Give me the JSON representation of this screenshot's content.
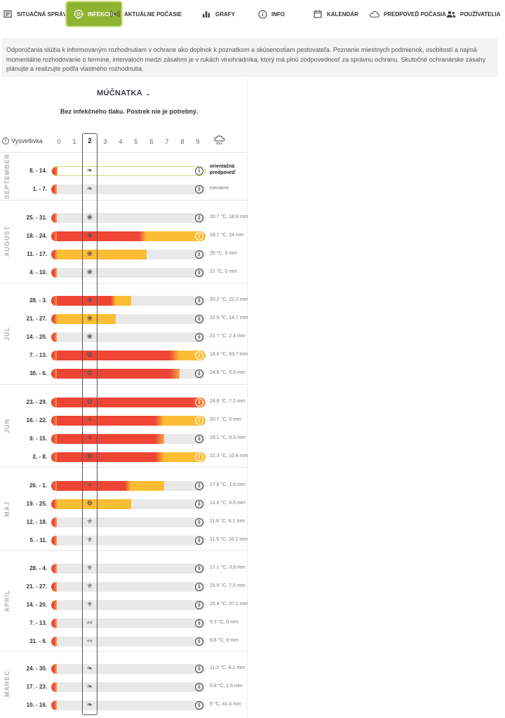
{
  "nav": [
    {
      "label": "SITUAČNÁ SPRÁVA",
      "icon": "newspaper-icon",
      "active": false
    },
    {
      "label": "INFEKCIA",
      "icon": "target-icon",
      "active": true
    },
    {
      "label": "AKTUÁLNE POČASIE",
      "icon": "broadcast-icon",
      "active": false
    },
    {
      "label": "GRAFY",
      "icon": "bar-chart-icon",
      "active": false
    },
    {
      "label": "INFO",
      "icon": "info-icon",
      "active": false
    },
    {
      "label": "KALENDÁR",
      "icon": "calendar-icon",
      "active": false
    },
    {
      "label": "PREDPOVEĎ POČASIA",
      "icon": "cloud-icon",
      "active": false
    },
    {
      "label": "POUŽÍVATELIA",
      "icon": "users-icon",
      "active": false
    }
  ],
  "notice": "Odporúčania slúžia k informovaným rozhodnutiam v ochrane ako doplnok k poznatkom a skúsenostiam pestovateľa. Poznanie miestnych podmienok, osobitostí a najmä momentálne rozhodovanie o termíne, intervaloch medzi zásahmi je v rukách vinohradníka, ktorý má plnú zodpovednosť za správnu ochranu. Skutočné ochranárske zásahy plánujte a realizujte podľa vlastného rozhodnutia.",
  "disease": {
    "name": "MÚČNATKA",
    "status": "Bez infekčného tlaku. Postrek nie je potrebný."
  },
  "legend_label": "Vysvetlivka",
  "scale": [
    "0",
    "1",
    "2",
    "3",
    "4",
    "5",
    "6",
    "7",
    "8",
    "9"
  ],
  "selected_level": 2,
  "colors": {
    "red": "#ef4535",
    "yellow": "#fbbd33",
    "grey": "#e9e9e9",
    "accent": "#8fb431"
  },
  "months": [
    {
      "name": "SEPTEMBER",
      "rows": [
        {
          "week": "8. - 14.",
          "red": 0,
          "yellow": 0,
          "current": true,
          "icon": "leaf-icon",
          "weather": "orientačná predpoveď",
          "bold": true
        },
        {
          "week": "1. - 7.",
          "red": 0,
          "yellow": 0,
          "icon": "leaf-icon",
          "weather": "meriame"
        }
      ]
    },
    {
      "name": "AUGUST",
      "rows": [
        {
          "week": "25. - 31.",
          "red": 0,
          "yellow": 0,
          "icon": "grape-icon",
          "weather": "20.7 °C, 18.9 mm"
        },
        {
          "week": "18. - 24.",
          "red": 0.62,
          "yellow": 1.0,
          "icon": "grape-icon",
          "weather": "18.7 °C, 24 mm"
        },
        {
          "week": "11. - 17.",
          "red": 0,
          "yellow": 0.62,
          "icon": "grape-icon",
          "weather": "25 °C, 0 mm"
        },
        {
          "week": "4. - 10.",
          "red": 0,
          "yellow": 0,
          "icon": "grape-icon",
          "weather": "22 °C, 0 mm"
        }
      ]
    },
    {
      "name": "JÚL",
      "rows": [
        {
          "week": "28. - 3.",
          "red": 0.42,
          "yellow": 0.52,
          "icon": "cluster-icon",
          "weather": "20.2 °C, 22.2 mm"
        },
        {
          "week": "21. - 27.",
          "red": 0,
          "yellow": 0.42,
          "icon": "cluster-icon",
          "weather": "22.9 °C, 14.7 mm"
        },
        {
          "week": "14. - 20.",
          "red": 0,
          "yellow": 0,
          "icon": "cluster-icon",
          "weather": "21.7 °C, 2.4 mm"
        },
        {
          "week": "7. - 13.",
          "red": 0.83,
          "yellow": 1.0,
          "icon": "flower-icon",
          "weather": "18.6 °C, 53.7 mm"
        },
        {
          "week": "30. - 6.",
          "red": 0.83,
          "yellow": 0.83,
          "icon": "flower-icon",
          "weather": "24.8 °C, 0.3 mm"
        }
      ]
    },
    {
      "name": "JÚN",
      "rows": [
        {
          "week": "23. - 29.",
          "red": 1.0,
          "yellow": 1.0,
          "icon": "flower-icon",
          "weather": "24.6 °C, 7.2 mm"
        },
        {
          "week": "16. - 22.",
          "red": 0.73,
          "yellow": 1.0,
          "icon": "shoot-icon",
          "weather": "20.7 °C, 0 mm"
        },
        {
          "week": "9. - 15.",
          "red": 0.73,
          "yellow": 0.73,
          "icon": "shoot-icon",
          "weather": "19.1 °C, 0.3 mm"
        },
        {
          "week": "2. - 8.",
          "red": 0.73,
          "yellow": 1.0,
          "icon": "bud-icon",
          "weather": "22.3 °C, 10.8 mm"
        }
      ]
    },
    {
      "name": "MÁJ",
      "rows": [
        {
          "week": "26. - 1.",
          "red": 0.52,
          "yellow": 0.73,
          "icon": "shoot-icon",
          "weather": "17.8 °C, 1.8 mm"
        },
        {
          "week": "19. - 25.",
          "red": 0,
          "yellow": 0.52,
          "icon": "bud-icon",
          "weather": "13.9 °C, 4.5 mm"
        },
        {
          "week": "12. - 18.",
          "red": 0,
          "yellow": 0,
          "icon": "sprout-icon",
          "weather": "11.8 °C, 8.1 mm"
        },
        {
          "week": "5. - 11.",
          "red": 0,
          "yellow": 0,
          "icon": "sprout-icon",
          "weather": "11.5 °C, 10.2 mm"
        }
      ]
    },
    {
      "name": "APRÍL",
      "rows": [
        {
          "week": "28. - 4.",
          "red": 0,
          "yellow": 0,
          "icon": "sprout-icon",
          "weather": "17.1 °C, 3.9 mm"
        },
        {
          "week": "21. - 27.",
          "red": 0,
          "yellow": 0,
          "icon": "sprout-icon",
          "weather": "15.9 °C, 7.5 mm"
        },
        {
          "week": "14. - 20.",
          "red": 0,
          "yellow": 0,
          "icon": "sprout-icon",
          "weather": "15.4 °C, 37.2 mm"
        },
        {
          "week": "7. - 13.",
          "red": 0,
          "yellow": 0,
          "icon": "twig-icon",
          "weather": "9.3 °C, 0 mm"
        },
        {
          "week": "31. - 6.",
          "red": 0,
          "yellow": 0,
          "icon": "twig-icon",
          "weather": "9.8 °C, 0 mm"
        }
      ]
    },
    {
      "name": "MAREC",
      "rows": [
        {
          "week": "24. - 30.",
          "red": 0,
          "yellow": 0,
          "icon": "leaf-icon",
          "weather": "11.2 °C, 8.1 mm"
        },
        {
          "week": "17. - 23.",
          "red": 0,
          "yellow": 0,
          "icon": "leaf-icon",
          "weather": "5.8 °C, 1.5 mm"
        },
        {
          "week": "10. - 16.",
          "red": 0,
          "yellow": 0,
          "icon": "leaf-icon",
          "weather": "9 °C, 41.4 mm"
        }
      ]
    }
  ]
}
